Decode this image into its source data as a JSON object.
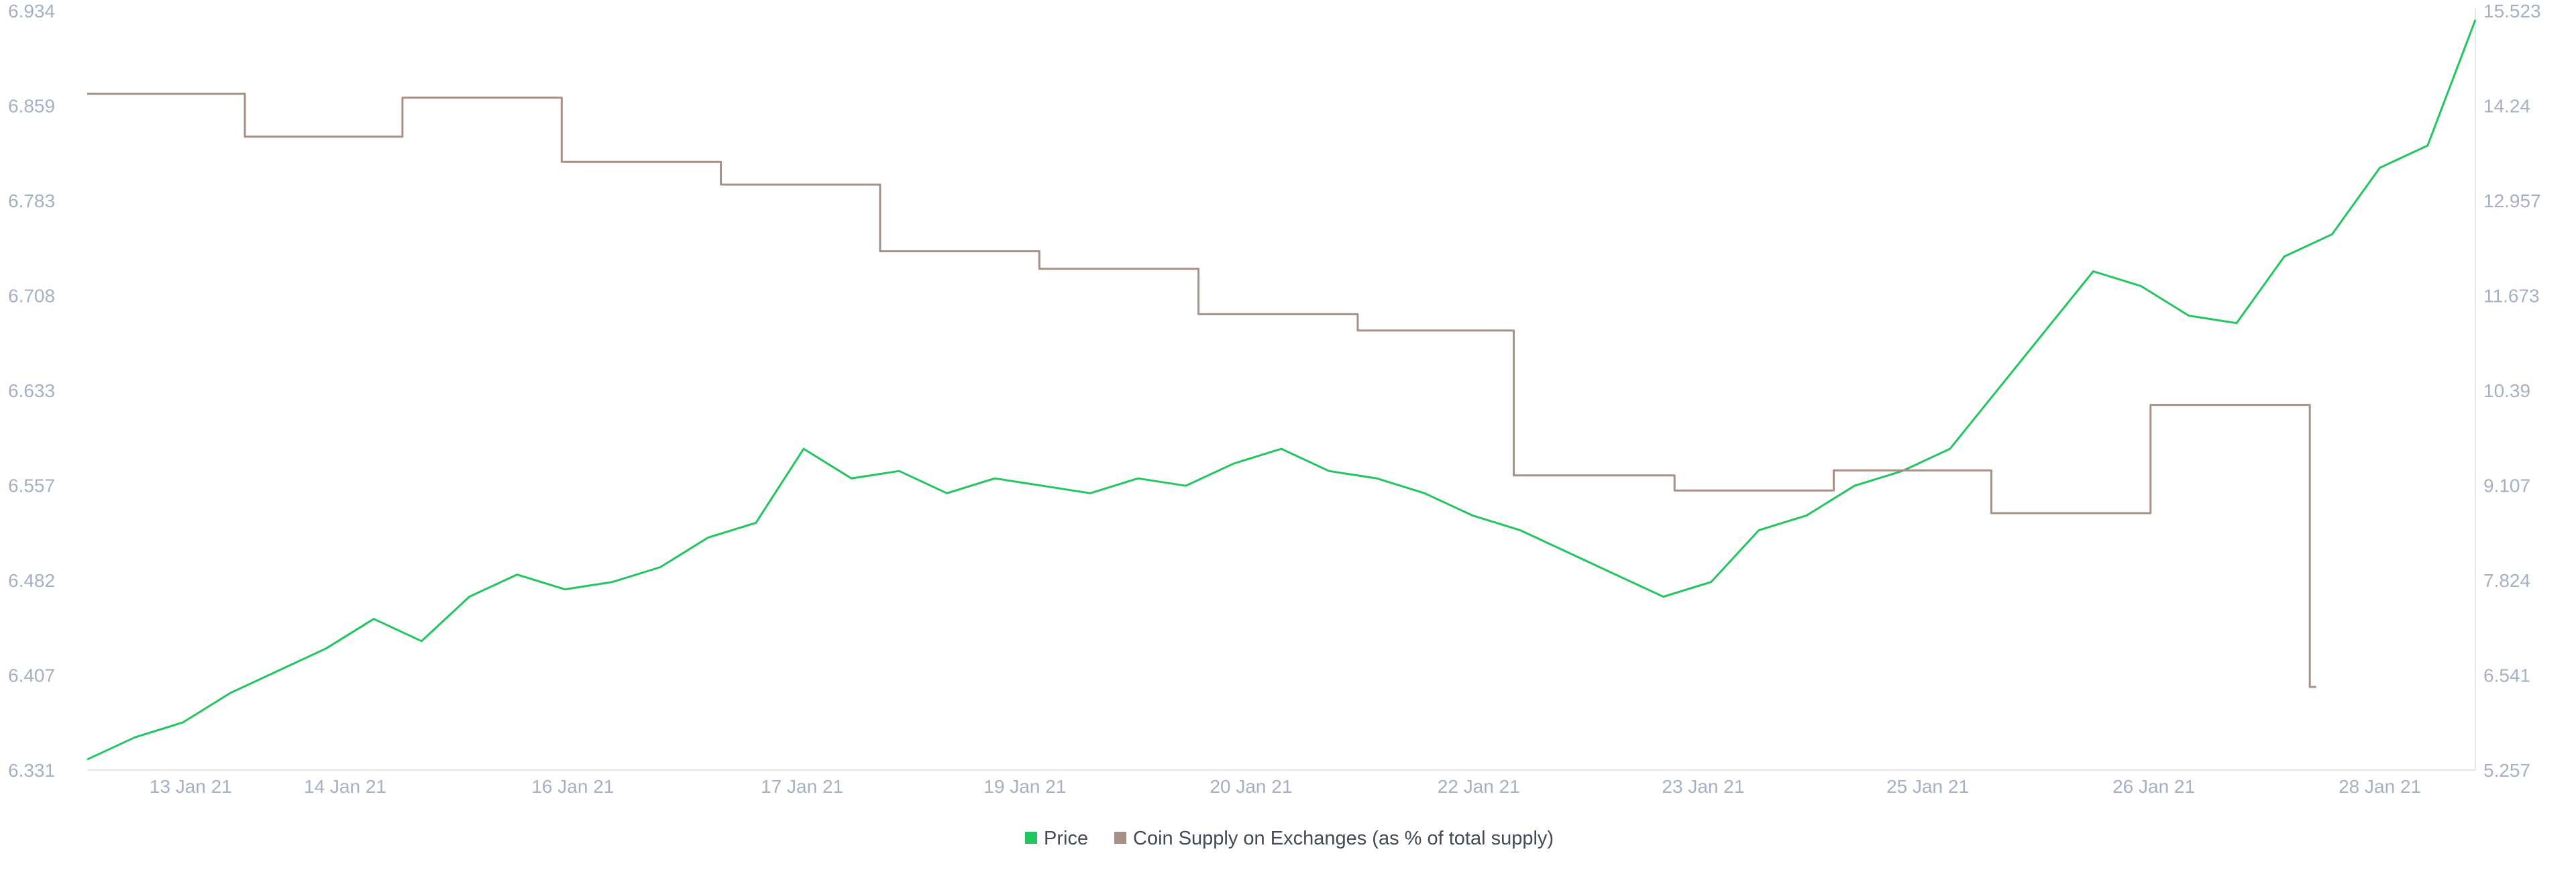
{
  "colors": {
    "price": "#22c55e",
    "supply": "#a89086",
    "tick": "#a6b0c3",
    "axis": "#e3e6ec"
  },
  "chart_data": {
    "type": "line",
    "title": "",
    "x_ticks": [
      "13 Jan 21",
      "14 Jan 21",
      "16 Jan 21",
      "17 Jan 21",
      "19 Jan 21",
      "20 Jan 21",
      "22 Jan 21",
      "23 Jan 21",
      "25 Jan 21",
      "26 Jan 21",
      "28 Jan 21"
    ],
    "y_left_ticks": [
      "6.331",
      "6.407",
      "6.482",
      "6.557",
      "6.633",
      "6.708",
      "6.783",
      "6.859",
      "6.934"
    ],
    "y_right_ticks": [
      "5.257",
      "6.541",
      "7.824",
      "9.107",
      "10.39",
      "11.673",
      "12.957",
      "14.24",
      "15.523"
    ],
    "y_left_range": [
      6.331,
      6.934
    ],
    "y_right_range": [
      5.257,
      15.523
    ],
    "x_range": [
      0,
      15
    ],
    "grid": false,
    "legend_position": "bottom-center",
    "series": [
      {
        "name": "Price",
        "axis": "right",
        "color": "#22c55e",
        "x": [
          0.0,
          0.3,
          0.6,
          0.9,
          1.2,
          1.5,
          1.8,
          2.1,
          2.4,
          2.7,
          3.0,
          3.3,
          3.6,
          3.9,
          4.2,
          4.5,
          4.8,
          5.1,
          5.4,
          5.7,
          6.0,
          6.3,
          6.6,
          6.9,
          7.2,
          7.5,
          7.8,
          8.1,
          8.4,
          8.7,
          9.0,
          9.3,
          9.6,
          9.9,
          10.2,
          10.5,
          10.8,
          11.1,
          11.4,
          11.7,
          12.0,
          12.3,
          12.6,
          12.9,
          13.2,
          13.5,
          13.8,
          14.1,
          14.4,
          14.7,
          15.0
        ],
        "values": [
          5.4,
          5.7,
          5.9,
          6.3,
          6.6,
          6.9,
          7.3,
          7.0,
          7.6,
          7.9,
          7.7,
          7.8,
          8.0,
          8.4,
          8.6,
          9.6,
          9.2,
          9.3,
          9.0,
          9.2,
          9.1,
          9.0,
          9.2,
          9.1,
          9.4,
          9.6,
          9.3,
          9.2,
          9.0,
          8.7,
          8.5,
          8.2,
          7.9,
          7.6,
          7.8,
          8.5,
          8.7,
          9.1,
          9.3,
          9.6,
          10.4,
          11.2,
          12.0,
          11.8,
          11.4,
          11.3,
          12.2,
          12.5,
          13.4,
          13.7,
          15.4
        ]
      },
      {
        "name": "Coin Supply on Exchanges (as % of total supply)",
        "axis": "left",
        "color": "#a89086",
        "x": [
          0.0,
          0.99,
          0.99,
          1.98,
          1.98,
          2.98,
          2.98,
          3.98,
          3.98,
          4.98,
          4.98,
          5.98,
          5.98,
          6.98,
          6.98,
          7.98,
          7.98,
          8.96,
          8.96,
          9.97,
          9.97,
          10.97,
          10.97,
          11.96,
          11.96,
          12.96,
          12.96,
          13.96,
          13.96,
          14.0
        ],
        "values": [
          6.868,
          6.868,
          6.834,
          6.834,
          6.865,
          6.865,
          6.814,
          6.814,
          6.796,
          6.796,
          6.743,
          6.743,
          6.729,
          6.729,
          6.693,
          6.693,
          6.68,
          6.68,
          6.565,
          6.565,
          6.553,
          6.553,
          6.569,
          6.569,
          6.535,
          6.535,
          6.621,
          6.621,
          6.397,
          6.397
        ]
      }
    ]
  }
}
